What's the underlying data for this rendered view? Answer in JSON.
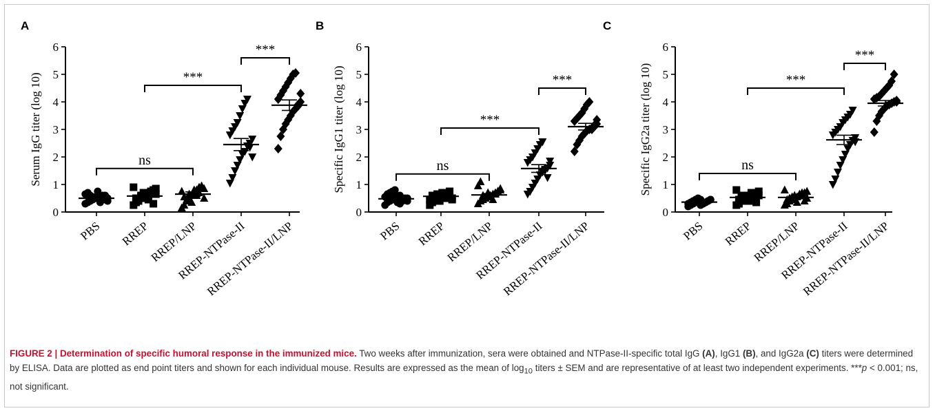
{
  "chart_data": [
    {
      "type": "scatter",
      "panel": "A",
      "ylabel": "Serum IgG titer (log 10)",
      "ylim": [
        0,
        6
      ],
      "yticks": [
        "0",
        "1",
        "2",
        "3",
        "4",
        "5",
        "6"
      ],
      "categories": [
        "PBS",
        "RREP",
        "RREP/LNP",
        "RREP-NTPase-II",
        "RREP-NTPase-II/LNP"
      ],
      "markers": [
        "circle",
        "square",
        "triangle-up",
        "triangle-down",
        "diamond"
      ],
      "means": [
        0.5,
        0.58,
        0.65,
        2.45,
        3.88
      ],
      "sem": [
        0.05,
        0.07,
        0.08,
        0.22,
        0.19
      ],
      "points": [
        [
          0.3,
          0.35,
          0.4,
          0.45,
          0.5,
          0.5,
          0.55,
          0.6,
          0.45,
          0.4,
          0.65,
          0.7,
          0.6,
          0.55,
          0.5,
          0.75,
          0.35,
          0.45,
          0.6,
          0.5
        ],
        [
          0.25,
          0.35,
          0.45,
          0.5,
          0.55,
          0.6,
          0.65,
          0.7,
          0.8,
          0.85,
          0.9,
          0.5,
          0.4,
          0.6,
          0.7,
          0.55,
          0.45,
          0.75,
          0.3,
          0.65
        ],
        [
          0.15,
          0.25,
          0.4,
          0.5,
          0.6,
          0.7,
          0.8,
          0.9,
          0.95,
          0.85,
          0.75,
          0.55,
          0.45,
          0.65,
          0.35,
          0.8,
          0.6,
          0.7,
          0.9,
          0.5
        ],
        [
          1.05,
          1.25,
          1.5,
          1.7,
          1.9,
          2.1,
          2.2,
          2.4,
          2.5,
          2.65,
          2.8,
          2.95,
          3.1,
          3.25,
          3.5,
          3.75,
          3.95,
          4.1,
          2.35,
          2.0
        ],
        [
          2.3,
          2.75,
          3.0,
          3.2,
          3.35,
          3.5,
          3.65,
          3.75,
          3.9,
          4.0,
          4.1,
          4.25,
          4.4,
          4.55,
          4.7,
          4.85,
          5.0,
          5.05,
          3.85,
          4.3
        ]
      ],
      "brackets": [
        {
          "from": 0,
          "to": 2,
          "label": "ns",
          "y": 1.58
        },
        {
          "from": 1,
          "to": 3,
          "label": "***",
          "y": 4.6
        },
        {
          "from": 3,
          "to": 4,
          "label": "***",
          "y": 5.6
        }
      ]
    },
    {
      "type": "scatter",
      "panel": "B",
      "ylabel": "Specific IgG1 titer (log 10)",
      "ylim": [
        0,
        6
      ],
      "yticks": [
        "0",
        "1",
        "2",
        "3",
        "4",
        "5",
        "6"
      ],
      "categories": [
        "PBS",
        "RREP",
        "RREP/LNP",
        "RREP-NTPase-II",
        "RREP-NTPase-II/LNP"
      ],
      "markers": [
        "circle",
        "square",
        "triangle-up",
        "triangle-down",
        "diamond"
      ],
      "means": [
        0.48,
        0.57,
        0.62,
        1.58,
        3.1
      ],
      "sem": [
        0.04,
        0.05,
        0.05,
        0.14,
        0.12
      ],
      "points": [
        [
          0.25,
          0.35,
          0.4,
          0.45,
          0.5,
          0.55,
          0.6,
          0.4,
          0.45,
          0.5,
          0.55,
          0.65,
          0.7,
          0.75,
          0.8,
          0.35,
          0.3,
          0.45,
          0.5,
          0.4
        ],
        [
          0.25,
          0.35,
          0.45,
          0.5,
          0.55,
          0.6,
          0.65,
          0.7,
          0.75,
          0.5,
          0.45,
          0.6,
          0.55,
          0.65,
          0.4,
          0.7,
          0.5,
          0.6,
          0.55,
          0.45
        ],
        [
          0.3,
          0.4,
          0.45,
          0.5,
          0.55,
          0.6,
          0.65,
          0.7,
          0.75,
          0.85,
          0.95,
          1.1,
          0.6,
          0.5,
          0.7,
          0.55,
          0.45,
          0.65,
          0.75,
          0.8
        ],
        [
          0.65,
          0.75,
          0.9,
          1.05,
          1.2,
          1.35,
          1.45,
          1.5,
          1.6,
          1.7,
          1.8,
          1.9,
          2.0,
          2.15,
          2.3,
          2.45,
          2.55,
          1.55,
          1.25,
          1.85
        ],
        [
          2.2,
          2.45,
          2.6,
          2.75,
          2.85,
          2.95,
          3.0,
          3.05,
          3.1,
          3.2,
          3.3,
          3.4,
          3.5,
          3.6,
          3.75,
          3.9,
          4.0,
          3.0,
          3.15,
          3.35
        ]
      ],
      "brackets": [
        {
          "from": 0,
          "to": 2,
          "label": "ns",
          "y": 1.38
        },
        {
          "from": 1,
          "to": 3,
          "label": "***",
          "y": 3.05
        },
        {
          "from": 3,
          "to": 4,
          "label": "***",
          "y": 4.5
        }
      ]
    },
    {
      "type": "scatter",
      "panel": "C",
      "ylabel": "Specific IgG2a titer (log 10)",
      "ylim": [
        0,
        6
      ],
      "yticks": [
        "0",
        "1",
        "2",
        "3",
        "4",
        "5",
        "6"
      ],
      "categories": [
        "PBS",
        "RREP",
        "RREP/LNP",
        "RREP-NTPase-II",
        "RREP-NTPase-II/LNP"
      ],
      "markers": [
        "circle",
        "square",
        "triangle-up",
        "triangle-down",
        "diamond"
      ],
      "means": [
        0.36,
        0.53,
        0.53,
        2.62,
        3.95
      ],
      "sem": [
        0.03,
        0.05,
        0.05,
        0.17,
        0.1
      ],
      "points": [
        [
          0.2,
          0.25,
          0.3,
          0.35,
          0.4,
          0.45,
          0.3,
          0.35,
          0.4,
          0.45,
          0.3,
          0.35,
          0.4,
          0.45,
          0.5,
          0.25,
          0.3,
          0.35,
          0.4,
          0.45
        ],
        [
          0.25,
          0.3,
          0.4,
          0.45,
          0.5,
          0.55,
          0.6,
          0.65,
          0.7,
          0.75,
          0.8,
          0.45,
          0.55,
          0.6,
          0.5,
          0.4,
          0.7,
          0.65,
          0.35,
          0.6
        ],
        [
          0.25,
          0.3,
          0.4,
          0.45,
          0.5,
          0.55,
          0.6,
          0.65,
          0.7,
          0.75,
          0.8,
          0.45,
          0.5,
          0.55,
          0.6,
          0.35,
          0.65,
          0.7,
          0.4,
          0.5
        ],
        [
          1.0,
          1.2,
          1.45,
          1.7,
          1.9,
          2.1,
          2.3,
          2.45,
          2.6,
          2.7,
          2.8,
          2.9,
          3.0,
          3.1,
          3.25,
          3.35,
          3.45,
          3.55,
          3.7,
          2.55
        ],
        [
          2.9,
          3.3,
          3.5,
          3.65,
          3.75,
          3.85,
          3.9,
          3.95,
          4.0,
          4.05,
          4.1,
          4.15,
          4.2,
          4.3,
          4.4,
          4.5,
          4.6,
          4.75,
          5.0,
          4.0
        ]
      ],
      "brackets": [
        {
          "from": 0,
          "to": 2,
          "label": "ns",
          "y": 1.4
        },
        {
          "from": 1,
          "to": 3,
          "label": "***",
          "y": 4.5
        },
        {
          "from": 3,
          "to": 4,
          "label": "***",
          "y": 5.4
        }
      ]
    }
  ],
  "caption": {
    "figure_label": "FIGURE 2 | Determination of specific humoral response in the immunized mice.",
    "s1": " Two weeks after immunization, sera were obtained and NTPase-II-specific total IgG ",
    "a": "(A)",
    "s2": ", IgG1 ",
    "b": "(B)",
    "s3": ", and IgG2a ",
    "c": "(C)",
    "s4": " titers were determined by ELISA. Data are plotted as end point titers and shown for each individual mouse. Results are expressed as the mean of log",
    "sub": "10",
    "s5": " titers ± SEM and are representative of at least two independent experiments. ***",
    "p": "p",
    "s6": " < 0.001; ns, not significant."
  }
}
